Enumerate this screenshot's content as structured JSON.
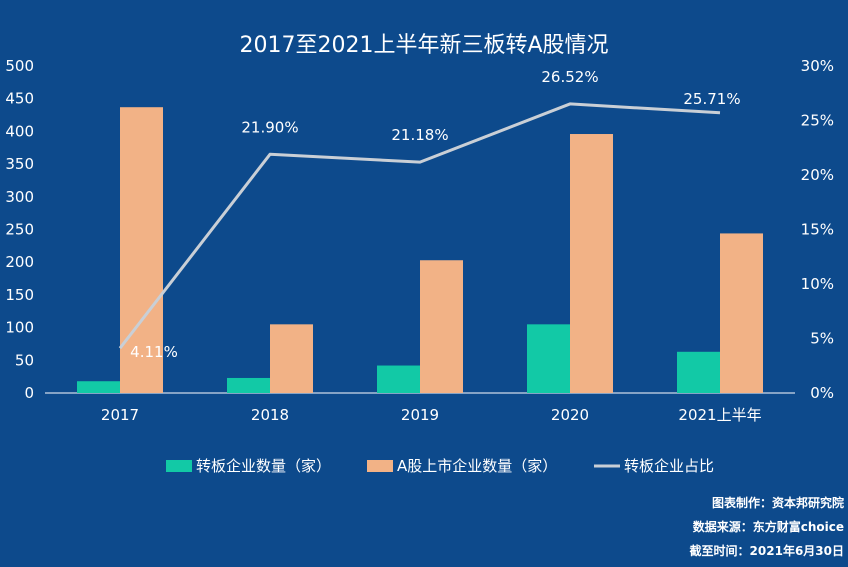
{
  "colors": {
    "background": "#0d4a8c",
    "series_transfer": "#12c9a6",
    "series_ashare": "#f2b286",
    "series_ratio": "#c9cfd6",
    "axis": "#ffffff"
  },
  "chart_data": {
    "type": "bar",
    "title": "2017至2021上半年新三板转A股情况",
    "categories": [
      "2017",
      "2018",
      "2019",
      "2020",
      "2021上半年"
    ],
    "ylim": [
      0,
      500
    ],
    "y_ticks": [
      "0",
      "50",
      "100",
      "150",
      "200",
      "250",
      "300",
      "350",
      "400",
      "450",
      "500"
    ],
    "y2lim": [
      0,
      30
    ],
    "y2_ticks": [
      "0%",
      "5%",
      "10%",
      "15%",
      "20%",
      "25%",
      "30%"
    ],
    "grid": false,
    "legend_position": "bottom",
    "series": [
      {
        "name": "转板企业数量（家）",
        "type": "bar",
        "axis": "left",
        "values": [
          18,
          23,
          42,
          105,
          63
        ]
      },
      {
        "name": "A股上市企业数量（家）",
        "type": "bar",
        "axis": "left",
        "values": [
          437,
          105,
          203,
          396,
          244
        ]
      },
      {
        "name": "转板企业占比",
        "type": "line",
        "axis": "right",
        "values": [
          4.11,
          21.9,
          21.18,
          26.52,
          25.71
        ],
        "labels": [
          "4.11%",
          "21.90%",
          "21.18%",
          "26.52%",
          "25.71%"
        ]
      }
    ]
  },
  "footer": {
    "line1": "图表制作：资本邦研究院",
    "line2": "数据来源：东方财富choice",
    "line3": "截至时间：2021年6月30日"
  }
}
